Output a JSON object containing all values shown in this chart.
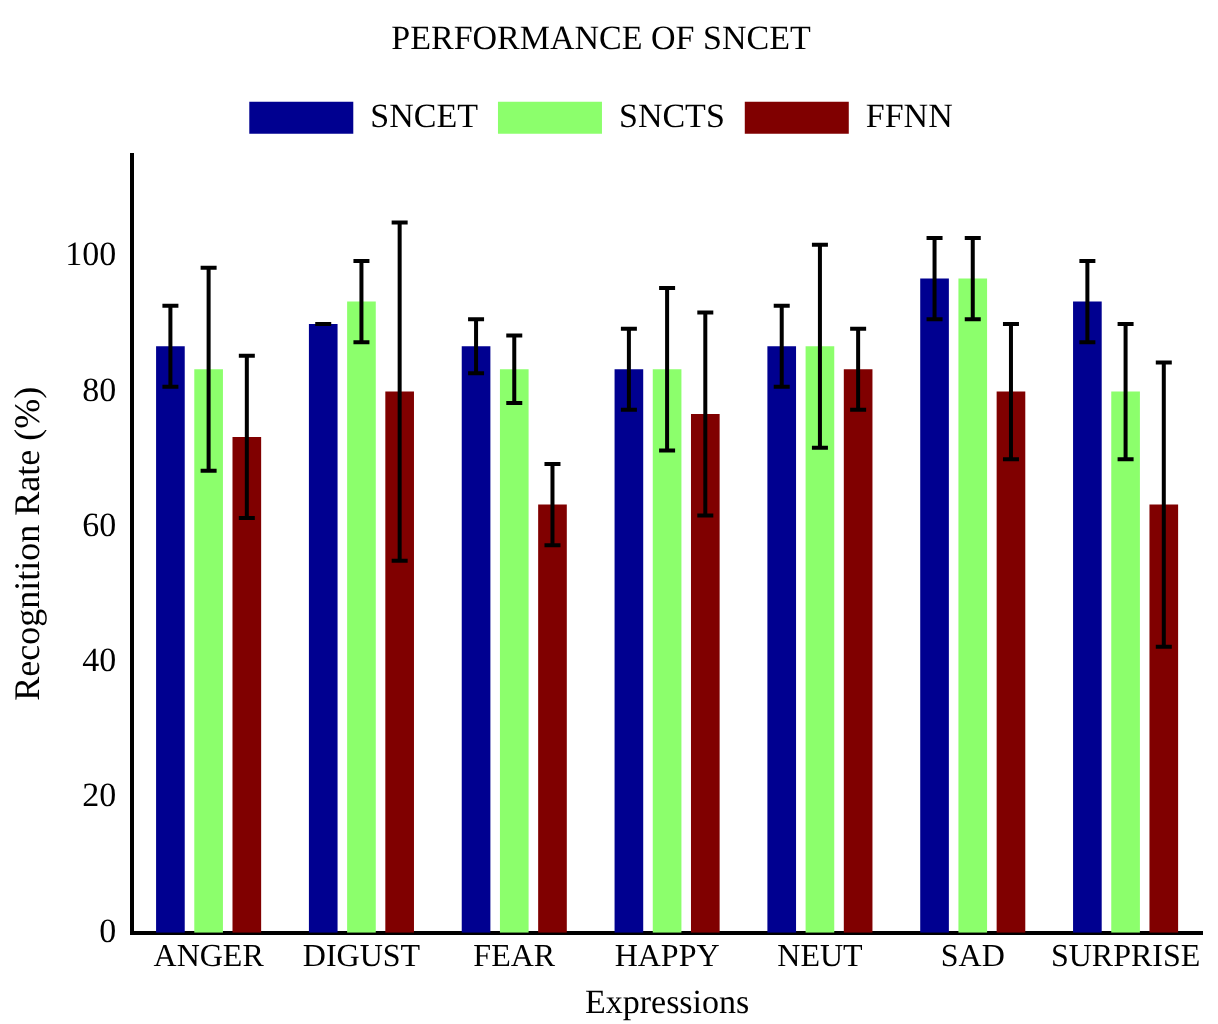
{
  "chart_data": {
    "type": "bar",
    "title": "PERFORMANCE OF SNCET",
    "xlabel": "Expressions",
    "ylabel": "Recognition Rate (%)",
    "categories": [
      "ANGER",
      "DIGUST",
      "FEAR",
      "HAPPY",
      "NEUT",
      "SAD",
      "SURPRISE"
    ],
    "series": [
      {
        "name": "SNCET",
        "color": "#000090",
        "values": [
          86.7,
          90,
          86.7,
          83.3,
          86.7,
          96.7,
          93.3
        ],
        "errors": [
          6,
          0,
          4,
          6,
          6,
          6,
          6
        ]
      },
      {
        "name": "SNCTS",
        "color": "#8cff6c",
        "values": [
          83.3,
          93.3,
          83.3,
          83.3,
          86.7,
          96.7,
          80
        ],
        "errors": [
          15,
          6,
          5,
          12,
          15,
          6,
          10
        ]
      },
      {
        "name": "FFNN",
        "color": "#800000",
        "values": [
          73.3,
          80,
          63.3,
          76.7,
          83.3,
          80,
          63.3
        ],
        "errors": [
          12,
          25,
          6,
          15,
          6,
          10,
          21
        ]
      }
    ],
    "ylim": [
      0,
      115
    ],
    "yticks": [
      0,
      20,
      40,
      60,
      80,
      100
    ],
    "grid": false,
    "legend": "top"
  }
}
